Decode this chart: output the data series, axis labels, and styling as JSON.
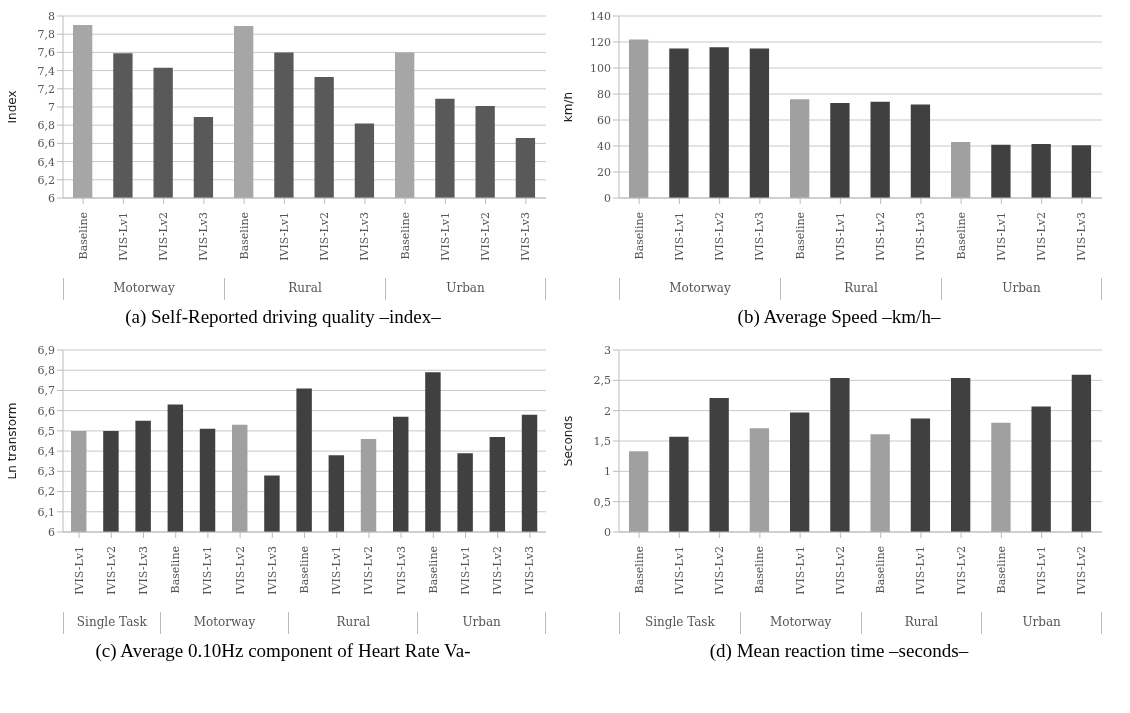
{
  "chart_data": [
    {
      "type": "bar",
      "title": "(a) Self-Reported driving quality –index–",
      "ylabel": "Index",
      "categories": [
        "Baseline",
        "IVIS-Lv1",
        "IVIS-Lv2",
        "IVIS-Lv3",
        "Baseline",
        "IVIS-Lv1",
        "IVIS-Lv2",
        "IVIS-Lv3",
        "Baseline",
        "IVIS-Lv1",
        "IVIS-Lv2",
        "IVIS-Lv3"
      ],
      "values": [
        7.9,
        7.59,
        7.43,
        6.89,
        7.89,
        7.6,
        7.33,
        6.82,
        7.6,
        7.09,
        7.01,
        6.66
      ],
      "colors": [
        "#a6a6a6",
        "#595959",
        "#595959",
        "#595959",
        "#a6a6a6",
        "#595959",
        "#595959",
        "#595959",
        "#a6a6a6",
        "#595959",
        "#595959",
        "#595959"
      ],
      "ylim": [
        6,
        8
      ],
      "yticks": [
        6,
        {
          "value": 6.2,
          "label": "6,2"
        },
        {
          "value": 6.4,
          "label": "6,4"
        },
        {
          "value": 6.6,
          "label": "6,6"
        },
        {
          "value": 6.8,
          "label": "6,8"
        },
        7,
        {
          "value": 7.2,
          "label": "7,2"
        },
        {
          "value": 7.4,
          "label": "7,4"
        },
        {
          "value": 7.6,
          "label": "7,6"
        },
        {
          "value": 7.8,
          "label": "7,8"
        },
        8
      ],
      "grid": "y",
      "annotations": [
        "Motorway",
        "Rural",
        "Urban"
      ]
    },
    {
      "type": "bar",
      "title": "(b) Average Speed –km/h–",
      "ylabel": "km/h",
      "categories": [
        "Baseline",
        "IVIS-Lv1",
        "IVIS-Lv2",
        "IVIS-Lv3",
        "Baseline",
        "IVIS-Lv1",
        "IVIS-Lv2",
        "IVIS-Lv3",
        "Baseline",
        "IVIS-Lv1",
        "IVIS-Lv2",
        "IVIS-Lv3"
      ],
      "values": [
        122,
        115,
        116,
        115,
        76,
        73,
        74,
        72,
        43,
        41,
        41.5,
        40.5
      ],
      "colors": [
        "#a0a0a0",
        "#404040",
        "#404040",
        "#404040",
        "#a0a0a0",
        "#404040",
        "#404040",
        "#404040",
        "#a0a0a0",
        "#404040",
        "#404040",
        "#404040"
      ],
      "ylim": [
        0,
        140
      ],
      "yticks": [
        0,
        20,
        40,
        60,
        80,
        100,
        120,
        140
      ],
      "grid": "y",
      "annotations": [
        "Motorway",
        "Rural",
        "Urban"
      ]
    },
    {
      "type": "bar",
      "title": "(c) Average 0.10Hz component of Heart Rate Va-",
      "ylabel": "Ln transform",
      "categories": [
        "IVIS-Lv1",
        "IVIS-Lv2",
        "IVIS-Lv3",
        "Baseline",
        "IVIS-Lv1",
        "IVIS-Lv2",
        "IVIS-Lv3",
        "Baseline",
        "IVIS-Lv1",
        "IVIS-Lv2",
        "IVIS-Lv3",
        "Baseline",
        "IVIS-Lv1",
        "IVIS-Lv2",
        "IVIS-Lv3"
      ],
      "values": [
        6.5,
        6.5,
        6.55,
        6.63,
        6.51,
        6.53,
        6.28,
        6.71,
        6.38,
        6.46,
        6.57,
        6.79,
        6.39,
        6.47,
        6.58
      ],
      "colors": [
        "#a0a0a0",
        "#404040",
        "#404040",
        "#404040",
        "#404040",
        "#a0a0a0",
        "#404040",
        "#404040",
        "#404040",
        "#a0a0a0",
        "#404040",
        "#404040",
        "#404040",
        "#404040",
        "#404040"
      ],
      "ylim": [
        6,
        6.9
      ],
      "yticks": [
        6,
        {
          "value": 6.1,
          "label": "6,1"
        },
        {
          "value": 6.2,
          "label": "6,2"
        },
        {
          "value": 6.3,
          "label": "6,3"
        },
        {
          "value": 6.4,
          "label": "6,4"
        },
        {
          "value": 6.5,
          "label": "6,5"
        },
        {
          "value": 6.6,
          "label": "6,6"
        },
        {
          "value": 6.7,
          "label": "6,7"
        },
        {
          "value": 6.8,
          "label": "6,8"
        },
        {
          "value": 6.9,
          "label": "6,9"
        }
      ],
      "grid": "y",
      "annotations": [
        "Single Task",
        "Motorway",
        "Rural",
        "Urban"
      ]
    },
    {
      "type": "bar",
      "title": "(d) Mean reaction time –seconds–",
      "ylabel": "Seconds",
      "categories": [
        "Baseline",
        "IVIS-Lv1",
        "IVIS-Lv2",
        "Baseline",
        "IVIS-Lv1",
        "IVIS-Lv2",
        "Baseline",
        "IVIS-Lv1",
        "IVIS-Lv2",
        "Baseline",
        "IVIS-Lv1",
        "IVIS-Lv2"
      ],
      "values": [
        1.33,
        1.57,
        2.21,
        1.71,
        1.97,
        2.54,
        1.61,
        1.87,
        2.54,
        1.8,
        2.07,
        2.59
      ],
      "colors": [
        "#a0a0a0",
        "#404040",
        "#404040",
        "#a0a0a0",
        "#404040",
        "#404040",
        "#a0a0a0",
        "#404040",
        "#404040",
        "#a0a0a0",
        "#404040",
        "#404040"
      ],
      "ylim": [
        0,
        3
      ],
      "yticks": [
        0,
        {
          "value": 0.5,
          "label": "0,5"
        },
        1,
        {
          "value": 1.5,
          "label": "1,5"
        },
        2,
        {
          "value": 2.5,
          "label": "2,5"
        },
        3
      ],
      "grid": "y",
      "annotations": [
        "Single Task",
        "Motorway",
        "Rural",
        "Urban"
      ]
    }
  ]
}
